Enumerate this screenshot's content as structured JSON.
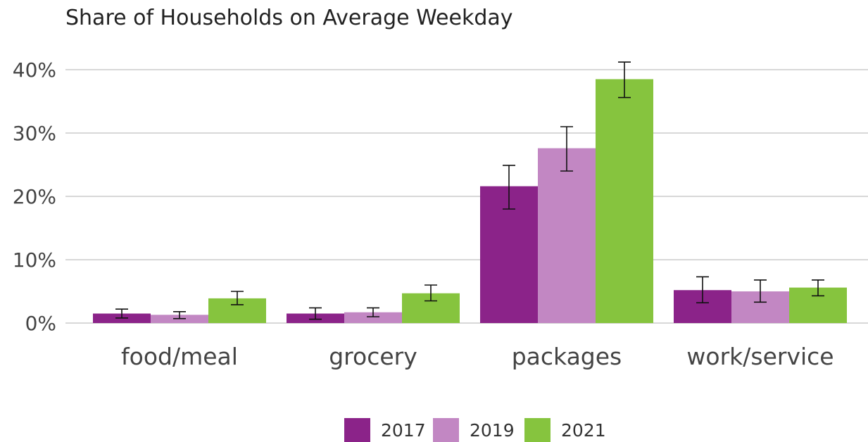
{
  "chart_data": {
    "type": "bar",
    "title": "Share of Households on Average Weekday",
    "xlabel": "",
    "ylabel": "",
    "categories": [
      "food/meal",
      "grocery",
      "packages",
      "work/service"
    ],
    "ylim": [
      0,
      45
    ],
    "yticks": [
      0,
      10,
      20,
      30,
      40
    ],
    "ytick_labels": [
      "0%",
      "10%",
      "20%",
      "30%",
      "40%"
    ],
    "grid": true,
    "legend_position": "bottom",
    "error_bars": true,
    "series": [
      {
        "name": "2017",
        "color": "#8b2389",
        "values": [
          1.5,
          1.5,
          21.6,
          5.2
        ],
        "err_low": [
          0.8,
          0.6,
          18.0,
          3.2
        ],
        "err_high": [
          2.2,
          2.4,
          24.9,
          7.3
        ]
      },
      {
        "name": "2019",
        "color": "#c287c3",
        "values": [
          1.3,
          1.7,
          27.6,
          5.0
        ],
        "err_low": [
          0.7,
          1.0,
          24.0,
          3.3
        ],
        "err_high": [
          1.8,
          2.4,
          31.0,
          6.8
        ]
      },
      {
        "name": "2021",
        "color": "#86c43e",
        "values": [
          3.9,
          4.7,
          38.5,
          5.6
        ],
        "err_low": [
          2.9,
          3.5,
          35.6,
          4.3
        ],
        "err_high": [
          5.0,
          6.0,
          41.2,
          6.8
        ]
      }
    ]
  }
}
